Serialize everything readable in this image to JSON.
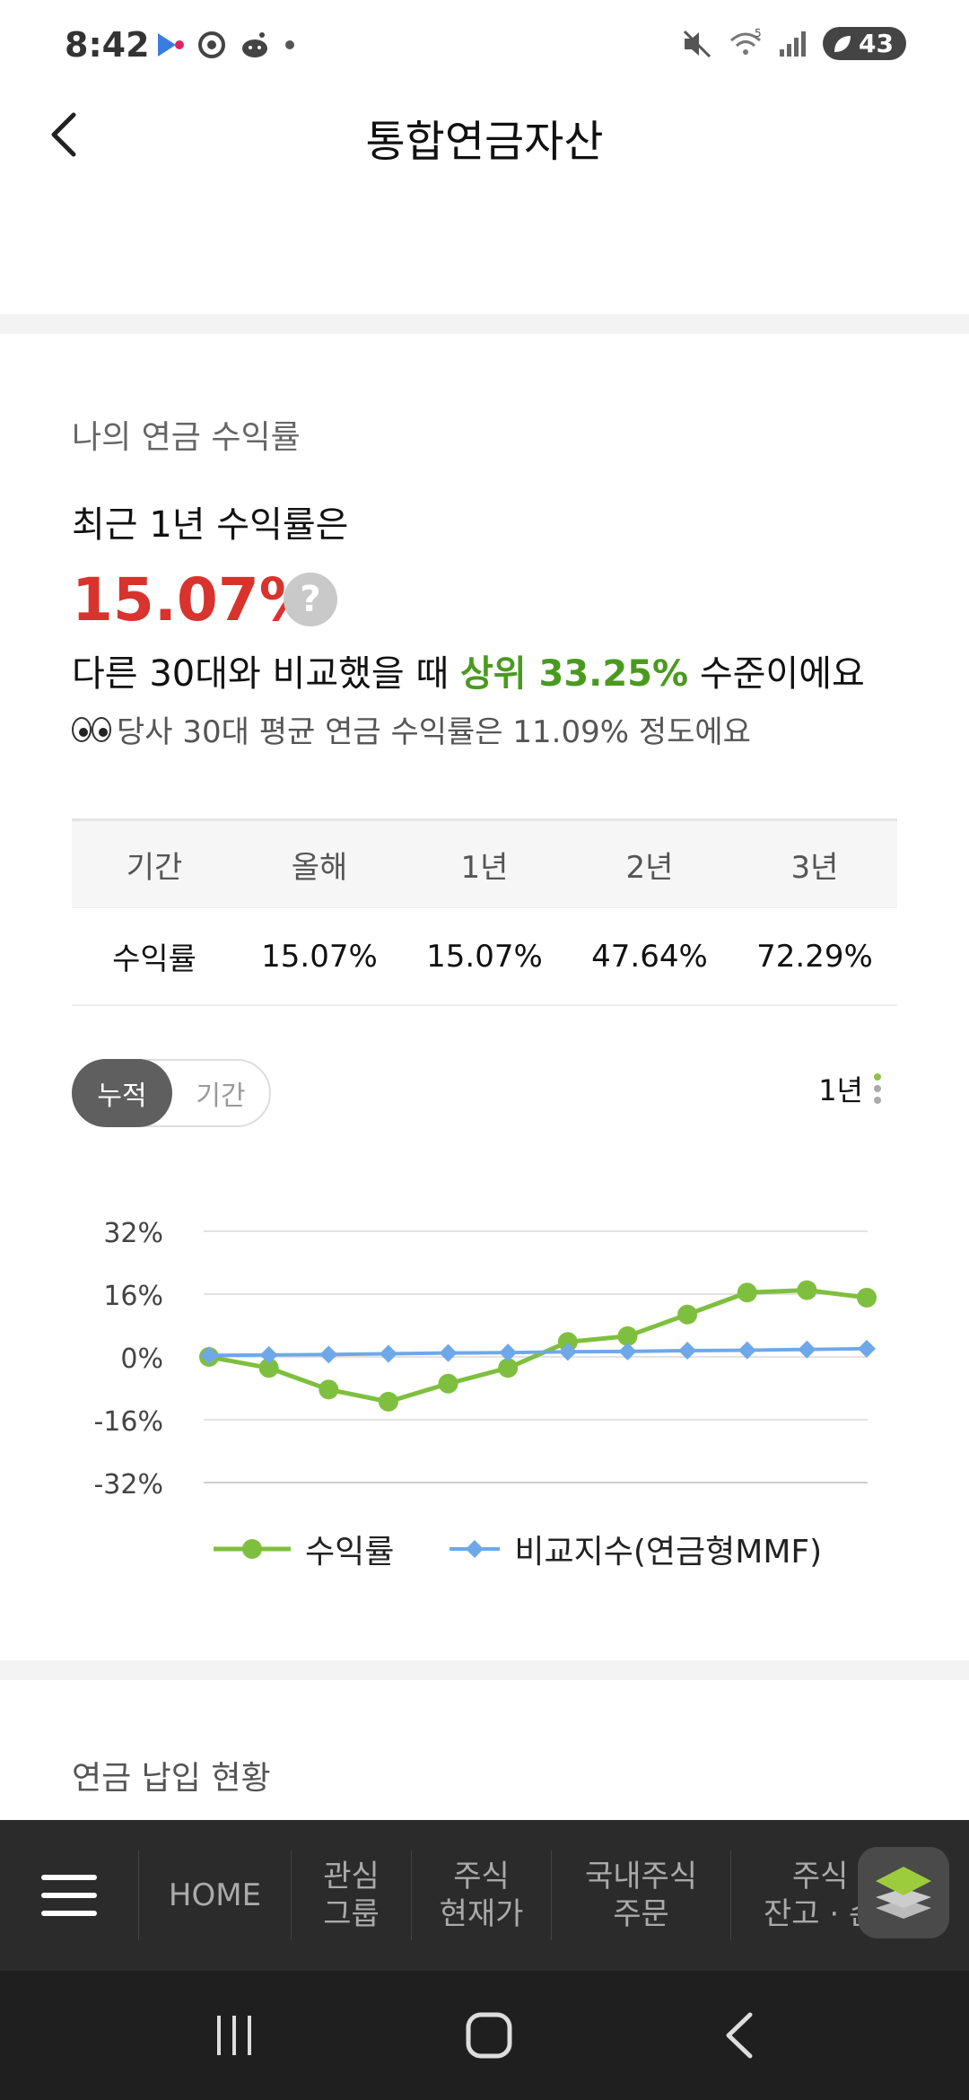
{
  "status_bar": {
    "time": "8:42",
    "battery": "43",
    "signal_label": "5"
  },
  "header": {
    "title": "통합연금자산"
  },
  "returns": {
    "section_label": "나의 연금 수익률",
    "headline": "최근 1년 수익률은",
    "rate": "15.07%",
    "help": "?",
    "compare_pre": "다른 30대와 비교했을 때 ",
    "compare_rank": "상위 33.25%",
    "compare_post": " 수준이에요",
    "avg_note": "당사 30대 평균 연금 수익률은 11.09% 정도에요"
  },
  "table": {
    "headers": [
      "기간",
      "올해",
      "1년",
      "2년",
      "3년"
    ],
    "row_label": "수익률",
    "values": [
      "15.07%",
      "15.07%",
      "47.64%",
      "72.29%"
    ]
  },
  "toggle": {
    "active": "누적",
    "inactive": "기간"
  },
  "period_select": "1년",
  "chart_data": {
    "type": "line",
    "ylim": [
      -32,
      32
    ],
    "y_ticks": [
      "32%",
      "16%",
      "0%",
      "-16%",
      "-32%"
    ],
    "y_tick_values": [
      32,
      16,
      0,
      -16,
      -32
    ],
    "x": [
      1,
      2,
      3,
      4,
      5,
      6,
      7,
      8,
      9,
      10,
      11,
      12
    ],
    "series": [
      {
        "name": "수익률",
        "color": "#7fbf3f",
        "marker": "circle",
        "values": [
          0.0,
          -2.8,
          -8.3,
          -11.4,
          -6.8,
          -2.8,
          3.8,
          5.3,
          10.8,
          16.4,
          17.0,
          15.1
        ]
      },
      {
        "name": "비교지수(연금형MMF)",
        "color": "#6fa8e8",
        "marker": "diamond",
        "values": [
          0.4,
          0.5,
          0.6,
          0.8,
          1.0,
          1.1,
          1.3,
          1.4,
          1.6,
          1.7,
          1.9,
          2.1
        ]
      }
    ],
    "grid": true,
    "legend": "bottom"
  },
  "contrib": {
    "section_label": "연금 납입 현황"
  },
  "app_nav": {
    "items": [
      "HOME",
      "관심\n그룹",
      "주식\n현재가",
      "국내주식\n주문",
      "주식\n잔고 · 손"
    ]
  }
}
